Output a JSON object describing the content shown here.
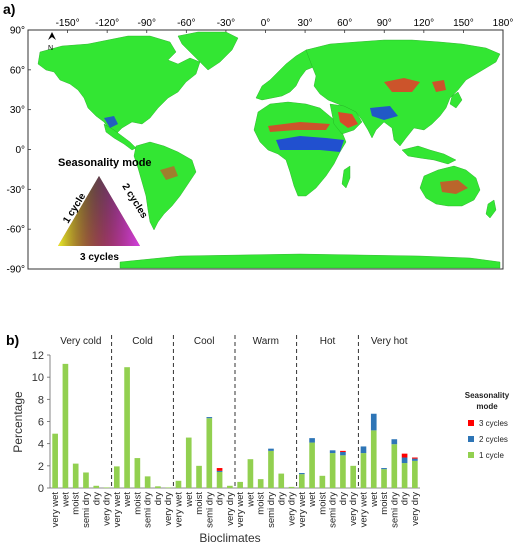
{
  "panel_a": {
    "label": "a)",
    "lon_ticks": [
      "-150°",
      "-120°",
      "-90°",
      "-60°",
      "-30°",
      "0°",
      "30°",
      "60°",
      "90°",
      "120°",
      "150°",
      "180°"
    ],
    "lat_ticks": [
      "90°",
      "60°",
      "30°",
      "0°",
      "-30°",
      "-60°",
      "-90°"
    ],
    "north_arrow": "N",
    "legend": {
      "title": "Seasonality mode",
      "left_label": "1 cycle",
      "right_label": "2 cycles",
      "bottom_label": "3 cycles"
    },
    "colors": {
      "land": "#33e633",
      "ocean": "#ffffff",
      "one_cycle": "#3ee83e",
      "two_cycles": "#1f3fe0",
      "three_cycles": "#e83a2a"
    }
  },
  "chart_data": {
    "type": "bar",
    "panel_label": "b)",
    "stacked": true,
    "xlabel": "Bioclimates",
    "ylabel": "Percentage",
    "ylim": [
      0,
      12
    ],
    "yticks": [
      0,
      2,
      4,
      6,
      8,
      10,
      12
    ],
    "grid": false,
    "legend_title": "Seasonality mode",
    "legend_position": "right",
    "groups": [
      {
        "name": "Very cold",
        "categories": [
          "very wet",
          "wet",
          "moist",
          "semi dry",
          "dry",
          "very dry"
        ]
      },
      {
        "name": "Cold",
        "categories": [
          "very wet",
          "wet",
          "moist",
          "semi dry",
          "dry",
          "very dry"
        ]
      },
      {
        "name": "Cool",
        "categories": [
          "very wet",
          "wet",
          "moist",
          "semi dry",
          "dry",
          "very dry"
        ]
      },
      {
        "name": "Warm",
        "categories": [
          "very wet",
          "wet",
          "moist",
          "semi dry",
          "dry",
          "very dry"
        ]
      },
      {
        "name": "Hot",
        "categories": [
          "very wet",
          "wet",
          "moist",
          "semi dry",
          "dry",
          "very dry"
        ]
      },
      {
        "name": "Very hot",
        "categories": [
          "very wet",
          "wet",
          "moist",
          "semi dry",
          "dry",
          "very dry"
        ]
      }
    ],
    "series": [
      {
        "name": "1 cycle",
        "color": "#92d050",
        "values": [
          4.9,
          11.2,
          2.2,
          1.4,
          0.2,
          0.05,
          1.95,
          10.9,
          2.7,
          1.05,
          0.15,
          0.05,
          0.65,
          4.55,
          2.0,
          6.3,
          1.45,
          0.2,
          0.55,
          2.6,
          0.8,
          3.35,
          1.3,
          0.1,
          1.25,
          4.1,
          1.1,
          3.15,
          2.95,
          2.0,
          3.15,
          5.2,
          1.7,
          3.95,
          2.25,
          2.45
        ]
      },
      {
        "name": "2 cycles",
        "color": "#2e75b6",
        "values": [
          0,
          0,
          0,
          0,
          0,
          0,
          0,
          0,
          0,
          0,
          0,
          0,
          0,
          0,
          0,
          0.1,
          0.1,
          0,
          0,
          0,
          0,
          0.2,
          0,
          0,
          0.1,
          0.4,
          0,
          0.25,
          0.3,
          0,
          0.6,
          1.5,
          0.1,
          0.45,
          0.5,
          0.2
        ]
      },
      {
        "name": "3 cycles",
        "color": "#ff0000",
        "values": [
          0,
          0,
          0,
          0,
          0,
          0,
          0,
          0,
          0,
          0,
          0,
          0,
          0,
          0,
          0,
          0,
          0.25,
          0,
          0,
          0,
          0,
          0,
          0,
          0,
          0,
          0,
          0,
          0,
          0.1,
          0,
          0,
          0,
          0,
          0,
          0.35,
          0.1
        ]
      }
    ]
  }
}
